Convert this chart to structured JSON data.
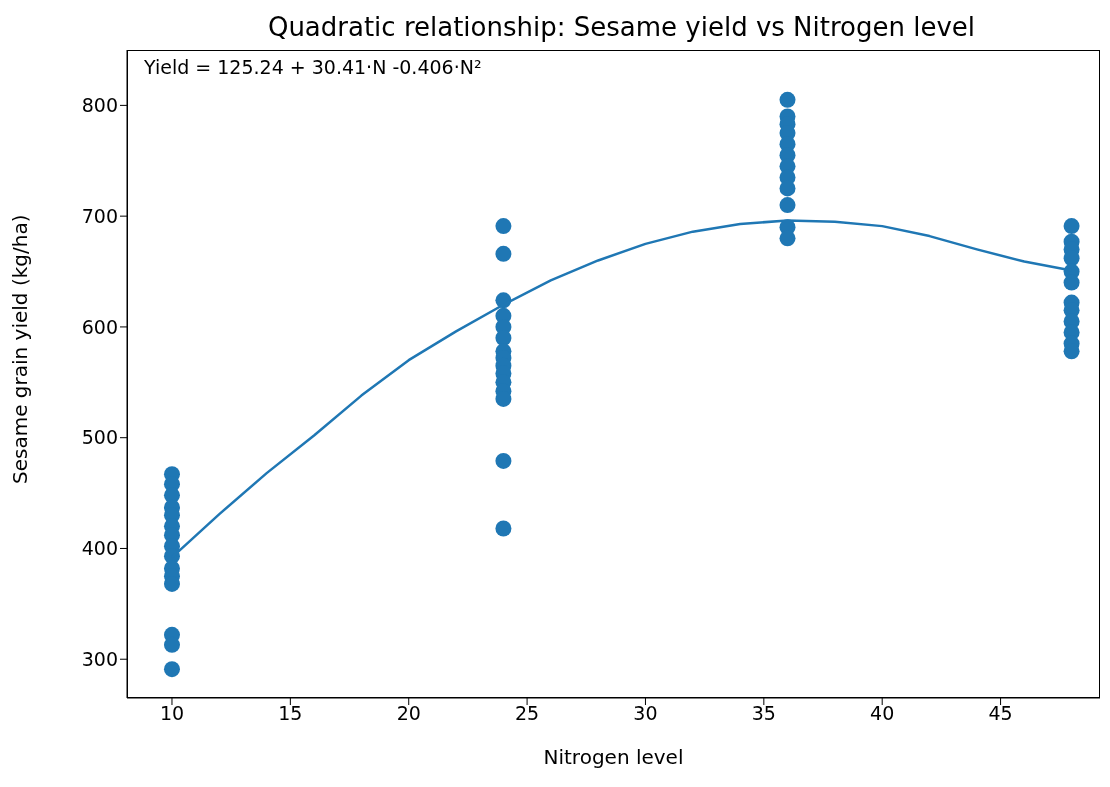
{
  "chart_data": {
    "type": "scatter",
    "title": "Quadratic relationship: Sesame yield vs Nitrogen level",
    "xlabel": "Nitrogen level",
    "ylabel": "Sesame grain yield (kg/ha)",
    "annotations": [
      "Yield = 125.24 + 30.41·N -0.406·N²"
    ],
    "xlim": [
      8.1,
      49.2
    ],
    "ylim": [
      265,
      850
    ],
    "xticks": [
      10,
      15,
      20,
      25,
      30,
      35,
      40,
      45
    ],
    "yticks": [
      300,
      400,
      500,
      600,
      700,
      800
    ],
    "grid": false,
    "legend": false,
    "series": [
      {
        "color": "#1f77b4",
        "marker": "circle",
        "x": [
          10,
          10,
          10,
          10,
          10,
          10,
          10,
          10,
          10,
          10,
          10,
          10,
          10,
          10,
          10,
          24,
          24,
          24,
          24,
          24,
          24,
          24,
          24,
          24,
          24,
          24,
          24,
          24,
          24,
          24,
          36,
          36,
          36,
          36,
          36,
          36,
          36,
          36,
          36,
          36,
          36,
          36,
          48,
          48,
          48,
          48,
          48,
          48,
          48,
          48,
          48,
          48,
          48,
          48
        ],
        "values": [
          467,
          458,
          448,
          437,
          430,
          420,
          412,
          402,
          393,
          382,
          375,
          368,
          322,
          313,
          291,
          691,
          666,
          624,
          610,
          600,
          590,
          578,
          572,
          565,
          558,
          550,
          542,
          535,
          479,
          418,
          805,
          790,
          783,
          775,
          765,
          755,
          745,
          735,
          725,
          710,
          690,
          680,
          691,
          677,
          670,
          662,
          650,
          640,
          622,
          615,
          605,
          595,
          585,
          578
        ]
      },
      {
        "type": "line",
        "color": "#1f77b4",
        "marker": "none",
        "line_style": "solid",
        "x": [
          10,
          12,
          14,
          16,
          18,
          20,
          22,
          24,
          26,
          28,
          30,
          32,
          34,
          36,
          38,
          40,
          42,
          44,
          46,
          48
        ],
        "values": [
          392,
          431,
          468,
          502,
          538,
          570,
          596,
          620,
          642,
          660,
          675,
          686,
          693,
          696,
          695,
          691,
          682,
          670,
          659,
          651
        ]
      }
    ]
  }
}
